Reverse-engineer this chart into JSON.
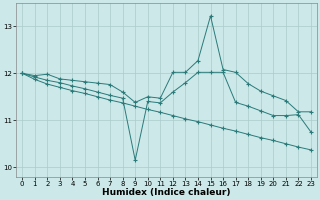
{
  "title": "",
  "xlabel": "Humidex (Indice chaleur)",
  "ylabel": "",
  "bg_color": "#cce8e8",
  "grid_color": "#aacccc",
  "line_color": "#2a7a7a",
  "x": [
    0,
    1,
    2,
    3,
    4,
    5,
    6,
    7,
    8,
    9,
    10,
    11,
    12,
    13,
    14,
    15,
    16,
    17,
    18,
    19,
    20,
    21,
    22,
    23
  ],
  "series1": [
    12.0,
    11.95,
    11.98,
    11.88,
    11.85,
    11.82,
    11.79,
    11.76,
    11.6,
    11.38,
    11.5,
    11.47,
    12.02,
    12.02,
    12.27,
    13.22,
    12.08,
    12.02,
    11.78,
    11.62,
    11.52,
    11.42,
    11.18,
    11.18
  ],
  "series2": [
    12.0,
    11.92,
    11.85,
    11.8,
    11.73,
    11.67,
    11.6,
    11.53,
    11.47,
    10.15,
    11.4,
    11.37,
    11.6,
    11.8,
    12.02,
    12.02,
    12.02,
    11.38,
    11.3,
    11.2,
    11.1,
    11.1,
    11.12,
    10.75
  ],
  "series3": [
    12.0,
    11.87,
    11.77,
    11.7,
    11.63,
    11.57,
    11.5,
    11.43,
    11.37,
    11.3,
    11.23,
    11.17,
    11.1,
    11.03,
    10.97,
    10.9,
    10.83,
    10.77,
    10.7,
    10.63,
    10.57,
    10.5,
    10.43,
    10.37
  ],
  "ylim": [
    9.8,
    13.5
  ],
  "yticks": [
    10,
    11,
    12,
    13
  ],
  "xticks": [
    0,
    1,
    2,
    3,
    4,
    5,
    6,
    7,
    8,
    9,
    10,
    11,
    12,
    13,
    14,
    15,
    16,
    17,
    18,
    19,
    20,
    21,
    22,
    23
  ],
  "marker": "+",
  "linewidth": 0.7,
  "markersize": 2.5,
  "markeredgewidth": 0.8,
  "xlabel_fontsize": 6.5,
  "tick_fontsize": 5.0
}
